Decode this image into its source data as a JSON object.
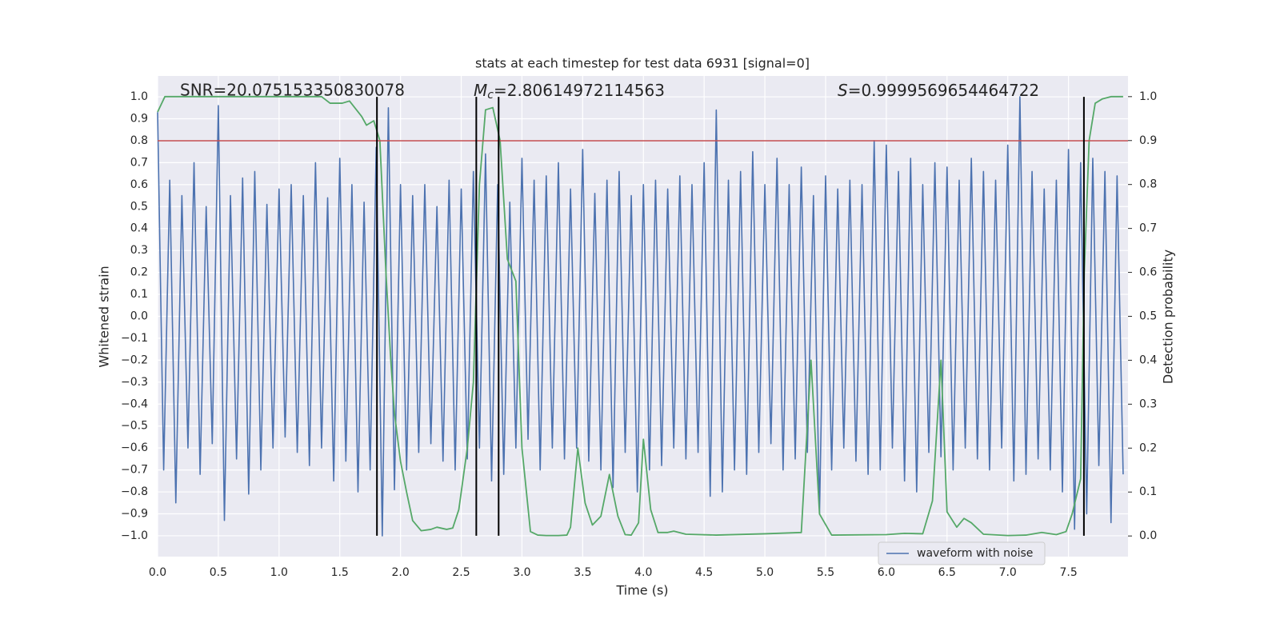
{
  "chart_data": {
    "type": "line",
    "title": "stats at each timestep for test data 6931 [signal=0]",
    "xlabel": "Time (s)",
    "ylabel": "Whitened strain",
    "y2label": "Detection probability",
    "annotations": [
      {
        "text": "SNR=20.075153350830078"
      },
      {
        "symbol": "M",
        "subscript": "c",
        "text": "=2.80614972114563"
      },
      {
        "symbol": "S",
        "text": "=0.9999569654464722"
      }
    ],
    "xlim": [
      0,
      7.99
    ],
    "ylim": [
      -1.095,
      1.095
    ],
    "y2lim": [
      -0.047,
      1.047
    ],
    "grid": true,
    "legend": "lower right",
    "xticks": [
      {
        "value": 0,
        "label": "0.0"
      },
      {
        "value": 0.5,
        "label": "0.5"
      },
      {
        "value": 1,
        "label": "1.0"
      },
      {
        "value": 1.5,
        "label": "1.5"
      },
      {
        "value": 2,
        "label": "2.0"
      },
      {
        "value": 2.5,
        "label": "2.5"
      },
      {
        "value": 3,
        "label": "3.0"
      },
      {
        "value": 3.5,
        "label": "3.5"
      },
      {
        "value": 4,
        "label": "4.0"
      },
      {
        "value": 4.5,
        "label": "4.5"
      },
      {
        "value": 5,
        "label": "5.0"
      },
      {
        "value": 5.5,
        "label": "5.5"
      },
      {
        "value": 6,
        "label": "6.0"
      },
      {
        "value": 6.5,
        "label": "6.5"
      },
      {
        "value": 7,
        "label": "7.0"
      },
      {
        "value": 7.5,
        "label": "7.5"
      }
    ],
    "yticks": [
      {
        "value": 1,
        "label": "1.0"
      },
      {
        "value": 0.9,
        "label": "0.9"
      },
      {
        "value": 0.8,
        "label": "0.8"
      },
      {
        "value": 0.7,
        "label": "0.7"
      },
      {
        "value": 0.6,
        "label": "0.6"
      },
      {
        "value": 0.5,
        "label": "0.5"
      },
      {
        "value": 0.4,
        "label": "0.4"
      },
      {
        "value": 0.3,
        "label": "0.3"
      },
      {
        "value": 0.2,
        "label": "0.2"
      },
      {
        "value": 0.1,
        "label": "0.1"
      },
      {
        "value": 0,
        "label": "0.0"
      },
      {
        "value": -0.1,
        "label": "−0.1"
      },
      {
        "value": -0.2,
        "label": "−0.2"
      },
      {
        "value": -0.3,
        "label": "−0.3"
      },
      {
        "value": -0.4,
        "label": "−0.4"
      },
      {
        "value": -0.5,
        "label": "−0.5"
      },
      {
        "value": -0.6,
        "label": "−0.6"
      },
      {
        "value": -0.7,
        "label": "−0.7"
      },
      {
        "value": -0.8,
        "label": "−0.8"
      },
      {
        "value": -0.9,
        "label": "−0.9"
      },
      {
        "value": -1,
        "label": "−1.0"
      }
    ],
    "y2ticks": [
      {
        "value": 1,
        "label": "1.0"
      },
      {
        "value": 0.9,
        "label": "0.9"
      },
      {
        "value": 0.8,
        "label": "0.8"
      },
      {
        "value": 0.7,
        "label": "0.7"
      },
      {
        "value": 0.6,
        "label": "0.6"
      },
      {
        "value": 0.5,
        "label": "0.5"
      },
      {
        "value": 0.4,
        "label": "0.4"
      },
      {
        "value": 0.3,
        "label": "0.3"
      },
      {
        "value": 0.2,
        "label": "0.2"
      },
      {
        "value": 0.1,
        "label": "0.1"
      },
      {
        "value": 0,
        "label": "0.0"
      }
    ],
    "hline": {
      "y": 0.8,
      "color": "#c44e52"
    },
    "vlines": {
      "x": [
        1.806,
        2.624,
        2.808,
        7.627
      ],
      "ymin": -1,
      "ymax": 1,
      "color": "#000000"
    },
    "series": [
      {
        "name": "waveform with noise",
        "color": "#4c72b0",
        "x": [
          0,
          0.05,
          0.1,
          0.15,
          0.2,
          0.25,
          0.3,
          0.35,
          0.4,
          0.45,
          0.5,
          0.55,
          0.6,
          0.65,
          0.7,
          0.75,
          0.8,
          0.85,
          0.9,
          0.95,
          1,
          1.05,
          1.1,
          1.15,
          1.2,
          1.25,
          1.3,
          1.35,
          1.4,
          1.45,
          1.5,
          1.55,
          1.6,
          1.65,
          1.7,
          1.75,
          1.8,
          1.85,
          1.9,
          1.95,
          2,
          2.05,
          2.1,
          2.15,
          2.2,
          2.25,
          2.3,
          2.35,
          2.4,
          2.45,
          2.5,
          2.55,
          2.6,
          2.65,
          2.7,
          2.75,
          2.8,
          2.85,
          2.9,
          2.95,
          3,
          3.05,
          3.1,
          3.15,
          3.2,
          3.25,
          3.3,
          3.35,
          3.4,
          3.45,
          3.5,
          3.55,
          3.6,
          3.65,
          3.7,
          3.75,
          3.8,
          3.85,
          3.9,
          3.95,
          4,
          4.05,
          4.1,
          4.15,
          4.2,
          4.25,
          4.3,
          4.35,
          4.4,
          4.45,
          4.5,
          4.55,
          4.6,
          4.65,
          4.7,
          4.75,
          4.8,
          4.85,
          4.9,
          4.95,
          5,
          5.05,
          5.1,
          5.15,
          5.2,
          5.25,
          5.3,
          5.35,
          5.4,
          5.45,
          5.5,
          5.55,
          5.6,
          5.65,
          5.7,
          5.75,
          5.8,
          5.85,
          5.9,
          5.95,
          6,
          6.05,
          6.1,
          6.15,
          6.2,
          6.25,
          6.3,
          6.35,
          6.4,
          6.45,
          6.5,
          6.55,
          6.6,
          6.65,
          6.7,
          6.75,
          6.8,
          6.85,
          6.9,
          6.95,
          7,
          7.05,
          7.1,
          7.15,
          7.2,
          7.25,
          7.3,
          7.35,
          7.4,
          7.45,
          7.5,
          7.55,
          7.6,
          7.65,
          7.7,
          7.75,
          7.8,
          7.85,
          7.9,
          7.95
        ],
        "values": [
          0.93,
          -0.7,
          0.62,
          -0.85,
          0.55,
          -0.6,
          0.7,
          -0.72,
          0.5,
          -0.58,
          0.96,
          -0.93,
          0.55,
          -0.65,
          0.63,
          -0.81,
          0.66,
          -0.7,
          0.51,
          -0.6,
          0.58,
          -0.55,
          0.6,
          -0.62,
          0.55,
          -0.68,
          0.7,
          -0.6,
          0.54,
          -0.75,
          0.72,
          -0.66,
          0.6,
          -0.8,
          0.52,
          -0.7,
          0.77,
          -1.0,
          0.95,
          -0.79,
          0.6,
          -0.7,
          0.55,
          -0.62,
          0.6,
          -0.58,
          0.5,
          -0.66,
          0.62,
          -0.7,
          0.58,
          -0.65,
          0.66,
          -0.6,
          0.74,
          -0.75,
          0.6,
          -0.72,
          0.52,
          -0.6,
          0.72,
          -0.56,
          0.62,
          -0.7,
          0.64,
          -0.6,
          0.7,
          -0.65,
          0.58,
          -0.6,
          0.76,
          -0.66,
          0.56,
          -0.7,
          0.62,
          -0.78,
          0.66,
          -0.62,
          0.55,
          -0.8,
          0.6,
          -0.7,
          0.62,
          -0.68,
          0.58,
          -0.6,
          0.64,
          -0.65,
          0.6,
          -0.62,
          0.7,
          -0.82,
          0.94,
          -0.8,
          0.62,
          -0.7,
          0.66,
          -0.72,
          0.75,
          -0.62,
          0.6,
          -0.58,
          0.72,
          -0.7,
          0.6,
          -0.65,
          0.68,
          -0.62,
          0.55,
          -0.9,
          0.64,
          -0.7,
          0.58,
          -0.6,
          0.62,
          -0.66,
          0.6,
          -0.72,
          0.8,
          -0.7,
          0.78,
          -0.6,
          0.66,
          -0.75,
          0.72,
          -0.8,
          0.6,
          -0.62,
          0.7,
          -0.64,
          0.68,
          -0.7,
          0.62,
          -0.6,
          0.72,
          -0.65,
          0.66,
          -0.7,
          0.62,
          -0.6,
          0.78,
          -0.75,
          1.0,
          -0.72,
          0.66,
          -0.65,
          0.58,
          -0.7,
          0.62,
          -0.8,
          0.76,
          -0.97,
          0.7,
          -0.9,
          0.72,
          -0.68,
          0.66,
          -0.94,
          0.64,
          -0.72
        ]
      },
      {
        "color": "#55a868",
        "axis": "y2",
        "x": [
          0,
          0.06,
          0.5,
          1.35,
          1.42,
          1.52,
          1.58,
          1.68,
          1.72,
          1.78,
          1.83,
          1.88,
          1.92,
          1.95,
          2.0,
          2.05,
          2.1,
          2.17,
          2.25,
          2.3,
          2.38,
          2.43,
          2.48,
          2.55,
          2.6,
          2.65,
          2.7,
          2.76,
          2.82,
          2.88,
          2.95,
          3.0,
          3.07,
          3.13,
          3.2,
          3.3,
          3.37,
          3.4,
          3.46,
          3.52,
          3.58,
          3.65,
          3.72,
          3.79,
          3.85,
          3.9,
          3.96,
          4.0,
          4.06,
          4.12,
          4.2,
          4.25,
          4.35,
          4.6,
          5.0,
          5.3,
          5.38,
          5.45,
          5.55,
          6.0,
          6.15,
          6.3,
          6.38,
          6.45,
          6.5,
          6.58,
          6.64,
          6.7,
          6.8,
          7.0,
          7.15,
          7.28,
          7.4,
          7.48,
          7.53,
          7.6,
          7.63,
          7.67,
          7.72,
          7.78,
          7.85,
          7.95
        ],
        "values": [
          0.965,
          1.0,
          1.0,
          1.0,
          0.985,
          0.985,
          0.99,
          0.955,
          0.935,
          0.945,
          0.9,
          0.6,
          0.4,
          0.28,
          0.17,
          0.1,
          0.035,
          0.012,
          0.015,
          0.02,
          0.015,
          0.018,
          0.06,
          0.2,
          0.35,
          0.8,
          0.97,
          0.975,
          0.9,
          0.63,
          0.58,
          0.2,
          0.01,
          0.002,
          0.001,
          0.001,
          0.002,
          0.02,
          0.2,
          0.075,
          0.025,
          0.045,
          0.14,
          0.045,
          0.003,
          0.002,
          0.03,
          0.22,
          0.06,
          0.008,
          0.008,
          0.011,
          0.004,
          0.002,
          0.005,
          0.008,
          0.4,
          0.05,
          0.002,
          0.003,
          0.006,
          0.005,
          0.08,
          0.4,
          0.055,
          0.02,
          0.04,
          0.03,
          0.004,
          0.001,
          0.002,
          0.008,
          0.003,
          0.01,
          0.05,
          0.13,
          0.6,
          0.9,
          0.985,
          0.995,
          1.0,
          1.0
        ]
      }
    ]
  }
}
